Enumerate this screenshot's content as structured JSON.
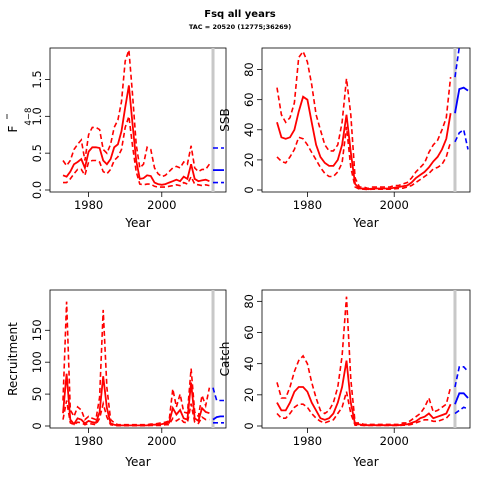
{
  "title": "Fsq all years",
  "subtitle": "TAC = 20520 (12775;36269)",
  "colors": {
    "historic": "#ff0000",
    "projection": "#0000ff",
    "marker": "#c8c8c8"
  },
  "chart_data": [
    {
      "type": "line",
      "id": "f",
      "xlabel": "Year",
      "ylabel": "F",
      "ylabel_sub": "4−8",
      "xlim": [
        1970,
        2017
      ],
      "ylim": [
        0,
        1.9
      ],
      "xticks": [
        1980,
        2000
      ],
      "yticks": [
        0.0,
        0.5,
        1.0,
        1.5
      ],
      "ytick_labels": [
        "0.0",
        "0.5",
        "1.0",
        "1.5"
      ],
      "vline": 2014,
      "historic": {
        "x": [
          1973,
          1974,
          1975,
          1976,
          1977,
          1978,
          1979,
          1980,
          1981,
          1982,
          1983,
          1984,
          1985,
          1986,
          1987,
          1988,
          1989,
          1990,
          1991,
          1992,
          1993,
          1994,
          1995,
          1996,
          1997,
          1998,
          1999,
          2000,
          2001,
          2002,
          2003,
          2004,
          2005,
          2006,
          2007,
          2008,
          2009,
          2010,
          2011,
          2012,
          2013
        ],
        "median": [
          0.2,
          0.18,
          0.25,
          0.35,
          0.38,
          0.42,
          0.3,
          0.52,
          0.58,
          0.58,
          0.57,
          0.4,
          0.35,
          0.42,
          0.58,
          0.62,
          0.8,
          1.12,
          1.42,
          0.9,
          0.4,
          0.15,
          0.16,
          0.2,
          0.19,
          0.1,
          0.08,
          0.07,
          0.08,
          0.1,
          0.12,
          0.14,
          0.12,
          0.18,
          0.15,
          0.35,
          0.15,
          0.12,
          0.13,
          0.14,
          0.12
        ],
        "lower": [
          0.1,
          0.1,
          0.15,
          0.22,
          0.28,
          0.28,
          0.2,
          0.38,
          0.4,
          0.4,
          0.38,
          0.25,
          0.22,
          0.28,
          0.4,
          0.45,
          0.55,
          0.85,
          1.0,
          0.6,
          0.25,
          0.08,
          0.07,
          0.08,
          0.08,
          0.05,
          0.04,
          0.04,
          0.04,
          0.05,
          0.06,
          0.07,
          0.06,
          0.1,
          0.08,
          0.18,
          0.08,
          0.07,
          0.06,
          0.07,
          0.06
        ],
        "upper": [
          0.4,
          0.33,
          0.4,
          0.55,
          0.62,
          0.68,
          0.4,
          0.75,
          0.85,
          0.85,
          0.82,
          0.55,
          0.5,
          0.62,
          0.85,
          0.95,
          1.2,
          1.75,
          1.9,
          1.3,
          0.62,
          0.3,
          0.35,
          0.58,
          0.55,
          0.3,
          0.22,
          0.18,
          0.2,
          0.25,
          0.3,
          0.32,
          0.3,
          0.38,
          0.35,
          0.6,
          0.3,
          0.25,
          0.28,
          0.28,
          0.35
        ]
      },
      "projection": {
        "x": [
          2014,
          2017
        ],
        "median": [
          0.27,
          0.27
        ],
        "lower": [
          0.1,
          0.1
        ],
        "upper": [
          0.57,
          0.57
        ]
      }
    },
    {
      "type": "line",
      "id": "ssb",
      "xlabel": "Year",
      "ylabel": "SSB",
      "xlim": [
        1970,
        2017
      ],
      "ylim": [
        0,
        93
      ],
      "xticks": [
        1980,
        2000
      ],
      "yticks": [
        0,
        20,
        40,
        60,
        80
      ],
      "ytick_labels": [
        "0",
        "20",
        "40",
        "60",
        "80"
      ],
      "vline": 2014,
      "historic": {
        "x": [
          1973,
          1974,
          1975,
          1976,
          1977,
          1978,
          1979,
          1980,
          1981,
          1982,
          1983,
          1984,
          1985,
          1986,
          1987,
          1988,
          1989,
          1990,
          1991,
          1992,
          1993,
          1994,
          1995,
          1996,
          1997,
          1998,
          1999,
          2000,
          2001,
          2002,
          2003,
          2004,
          2005,
          2006,
          2007,
          2008,
          2009,
          2010,
          2011,
          2012,
          2013
        ],
        "median": [
          45,
          35,
          34,
          35,
          40,
          52,
          62,
          60,
          45,
          30,
          22,
          18,
          16,
          16,
          20,
          30,
          50,
          25,
          4,
          1,
          1,
          0.5,
          1,
          1,
          1,
          1,
          1,
          1.5,
          2,
          2.5,
          3,
          5,
          8,
          10,
          12,
          15,
          19,
          22,
          27,
          34,
          51
        ],
        "lower": [
          22,
          19,
          18,
          22,
          27,
          35,
          34,
          30,
          25,
          20,
          15,
          11,
          9,
          9,
          12,
          18,
          42,
          15,
          2,
          0.5,
          0.5,
          0.3,
          0.5,
          0.5,
          0.5,
          0.5,
          0.5,
          0.8,
          1,
          1.2,
          2,
          3,
          5,
          7,
          9,
          11,
          14,
          15,
          17,
          22,
          32
        ],
        "upper": [
          68,
          50,
          45,
          48,
          58,
          88,
          92,
          85,
          70,
          50,
          40,
          30,
          26,
          26,
          30,
          45,
          74,
          50,
          8,
          2,
          2,
          1,
          2,
          2,
          2,
          2,
          2,
          3,
          3,
          4,
          5,
          8,
          12,
          15,
          18,
          25,
          30,
          33,
          40,
          48,
          75
        ]
      },
      "projection": {
        "x": [
          2014,
          2015,
          2016,
          2017
        ],
        "median": [
          51,
          67,
          68,
          66
        ],
        "lower": [
          32,
          38,
          40,
          27
        ],
        "upper": [
          75,
          95,
          98,
          100
        ]
      }
    },
    {
      "type": "line",
      "id": "rec",
      "xlabel": "Year",
      "ylabel": "Recruitment",
      "xlim": [
        1970,
        2017
      ],
      "ylim": [
        0,
        210
      ],
      "xticks": [
        1980,
        2000
      ],
      "yticks": [
        0,
        50,
        100,
        150
      ],
      "ytick_labels": [
        "0",
        "50",
        "100",
        "150"
      ],
      "vline": 2014,
      "historic": {
        "x": [
          1973,
          1974,
          1975,
          1976,
          1977,
          1978,
          1979,
          1980,
          1981,
          1982,
          1983,
          1984,
          1985,
          1986,
          1987,
          1988,
          1989,
          1990,
          1991,
          1992,
          1993,
          1994,
          1995,
          1996,
          1997,
          1998,
          1999,
          2000,
          2001,
          2002,
          2003,
          2004,
          2005,
          2006,
          2007,
          2008,
          2009,
          2010,
          2011,
          2012,
          2013
        ],
        "median": [
          20,
          82,
          10,
          3,
          12,
          10,
          4,
          8,
          6,
          5,
          22,
          78,
          28,
          4,
          2,
          1,
          1,
          1,
          1,
          1,
          1,
          1,
          1,
          1,
          2,
          2,
          2,
          3,
          4,
          5,
          28,
          18,
          25,
          12,
          10,
          68,
          12,
          8,
          28,
          22,
          20
        ],
        "lower": [
          10,
          40,
          5,
          2,
          6,
          5,
          2,
          4,
          3,
          2,
          12,
          35,
          14,
          2,
          1,
          0.5,
          0.5,
          0.5,
          0.5,
          0.5,
          0.5,
          0.5,
          0.5,
          0.5,
          1,
          1,
          1,
          1,
          2,
          2,
          12,
          8,
          12,
          6,
          5,
          35,
          6,
          4,
          14,
          10,
          10
        ],
        "upper": [
          40,
          195,
          25,
          15,
          30,
          25,
          10,
          15,
          12,
          10,
          45,
          182,
          60,
          10,
          5,
          2,
          2,
          2,
          2,
          2,
          2,
          2,
          2,
          2,
          3,
          3,
          4,
          5,
          6,
          8,
          58,
          30,
          50,
          22,
          20,
          90,
          22,
          15,
          48,
          32,
          60
        ]
      },
      "projection": {
        "x": [
          2014,
          2015,
          2016,
          2017
        ],
        "median": [
          10,
          14,
          15,
          15
        ],
        "lower": [
          5,
          5,
          5,
          5
        ],
        "upper": [
          60,
          40,
          40,
          40
        ]
      }
    },
    {
      "type": "line",
      "id": "catch",
      "xlabel": "Year",
      "ylabel": "Catch",
      "xlim": [
        1970,
        2017
      ],
      "ylim": [
        0,
        86
      ],
      "xticks": [
        1980,
        2000
      ],
      "yticks": [
        0,
        20,
        40,
        60,
        80
      ],
      "ytick_labels": [
        "0",
        "20",
        "40",
        "60",
        "80"
      ],
      "vline": 2014,
      "historic": {
        "x": [
          1973,
          1974,
          1975,
          1976,
          1977,
          1978,
          1979,
          1980,
          1981,
          1982,
          1983,
          1984,
          1985,
          1986,
          1987,
          1988,
          1989,
          1990,
          1991,
          1992,
          1993,
          1994,
          1995,
          1996,
          1997,
          1998,
          1999,
          2000,
          2001,
          2002,
          2003,
          2004,
          2005,
          2006,
          2007,
          2008,
          2009,
          2010,
          2011,
          2012,
          2013
        ],
        "median": [
          15,
          10,
          10,
          15,
          22,
          25,
          25,
          22,
          15,
          10,
          5,
          4,
          5,
          8,
          15,
          25,
          42,
          15,
          1,
          1,
          0.5,
          0.5,
          0.5,
          0.5,
          0.5,
          0.5,
          0.5,
          0.5,
          0.5,
          1,
          1,
          2,
          3,
          5,
          6,
          8,
          5,
          6,
          7,
          8,
          14
        ],
        "lower": [
          8,
          5,
          5,
          8,
          12,
          14,
          14,
          12,
          8,
          5,
          3,
          2,
          3,
          4,
          8,
          12,
          22,
          8,
          0.5,
          0.5,
          0.3,
          0.3,
          0.3,
          0.3,
          0.3,
          0.3,
          0.3,
          0.3,
          0.3,
          0.5,
          0.5,
          1,
          2,
          3,
          4,
          4,
          3,
          3,
          4,
          5,
          8
        ],
        "upper": [
          28,
          18,
          18,
          25,
          35,
          42,
          45,
          40,
          28,
          18,
          10,
          8,
          10,
          15,
          25,
          45,
          83,
          30,
          2,
          2,
          1,
          1,
          1,
          1,
          1,
          1,
          1,
          1,
          1,
          2,
          2,
          4,
          6,
          8,
          12,
          18,
          9,
          10,
          12,
          14,
          25
        ]
      },
      "projection": {
        "x": [
          2014,
          2015,
          2016,
          2017
        ],
        "median": [
          14,
          21,
          21,
          18
        ],
        "lower": [
          8,
          10,
          12,
          11
        ],
        "upper": [
          25,
          38,
          38,
          35
        ]
      }
    }
  ]
}
